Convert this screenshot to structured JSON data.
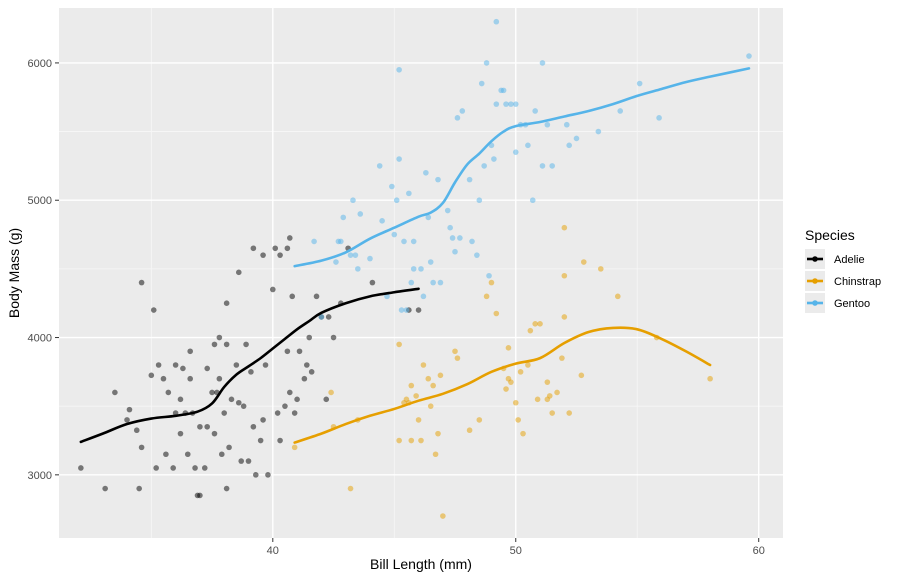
{
  "chart_data": {
    "type": "scatter",
    "xlabel": "Bill Length (mm)",
    "ylabel": "Body Mass (g)",
    "xlim": [
      31.2,
      61.0
    ],
    "ylim": [
      2540,
      6400
    ],
    "xticks": [
      40,
      50,
      60
    ],
    "yticks": [
      3000,
      4000,
      5000,
      6000
    ],
    "grid": true,
    "legend": {
      "title": "Species",
      "position": "right"
    },
    "series": [
      {
        "name": "Adelie",
        "color": "#000000",
        "points": [
          [
            32.1,
            3050
          ],
          [
            33.1,
            2900
          ],
          [
            33.5,
            3600
          ],
          [
            34.0,
            3400
          ],
          [
            34.1,
            3475
          ],
          [
            34.4,
            3325
          ],
          [
            34.5,
            2900
          ],
          [
            34.6,
            3200
          ],
          [
            34.6,
            4400
          ],
          [
            35.0,
            3725
          ],
          [
            35.1,
            4200
          ],
          [
            35.2,
            3050
          ],
          [
            35.3,
            3800
          ],
          [
            35.5,
            3700
          ],
          [
            35.6,
            3150
          ],
          [
            35.7,
            3600
          ],
          [
            35.9,
            3050
          ],
          [
            36.0,
            3450
          ],
          [
            36.0,
            3800
          ],
          [
            36.2,
            3300
          ],
          [
            36.2,
            3550
          ],
          [
            36.3,
            3775
          ],
          [
            36.4,
            3450
          ],
          [
            36.5,
            3150
          ],
          [
            36.6,
            3700
          ],
          [
            36.7,
            3450
          ],
          [
            36.8,
            3050
          ],
          [
            36.9,
            2850
          ],
          [
            37.0,
            2850
          ],
          [
            37.0,
            3350
          ],
          [
            37.2,
            3050
          ],
          [
            37.3,
            3350
          ],
          [
            37.3,
            3775
          ],
          [
            37.5,
            3600
          ],
          [
            37.6,
            3300
          ],
          [
            37.7,
            3600
          ],
          [
            37.8,
            3700
          ],
          [
            37.8,
            4000
          ],
          [
            37.9,
            3150
          ],
          [
            38.0,
            3450
          ],
          [
            38.1,
            2900
          ],
          [
            38.2,
            3200
          ],
          [
            38.3,
            3550
          ],
          [
            38.5,
            3800
          ],
          [
            38.6,
            3525
          ],
          [
            38.6,
            4475
          ],
          [
            38.7,
            3100
          ],
          [
            38.8,
            3500
          ],
          [
            38.9,
            3950
          ],
          [
            39.0,
            3100
          ],
          [
            39.1,
            3750
          ],
          [
            39.2,
            3350
          ],
          [
            39.3,
            3000
          ],
          [
            39.5,
            3250
          ],
          [
            39.6,
            3400
          ],
          [
            39.7,
            3800
          ],
          [
            39.8,
            3000
          ],
          [
            40.0,
            4350
          ],
          [
            40.2,
            3450
          ],
          [
            40.3,
            3250
          ],
          [
            40.5,
            3500
          ],
          [
            40.6,
            3900
          ],
          [
            40.7,
            3600
          ],
          [
            40.8,
            4300
          ],
          [
            40.9,
            3450
          ],
          [
            41.0,
            3550
          ],
          [
            41.1,
            3900
          ],
          [
            41.3,
            3700
          ],
          [
            41.4,
            3800
          ],
          [
            41.5,
            4000
          ],
          [
            41.6,
            3750
          ],
          [
            41.8,
            4300
          ],
          [
            42.0,
            4150
          ],
          [
            42.2,
            3550
          ],
          [
            42.3,
            4150
          ],
          [
            42.5,
            4000
          ],
          [
            42.8,
            4250
          ],
          [
            43.1,
            4650
          ],
          [
            44.1,
            4400
          ],
          [
            45.6,
            4200
          ],
          [
            46.0,
            4200
          ],
          [
            39.2,
            4650
          ],
          [
            39.6,
            4600
          ],
          [
            40.1,
            4650
          ],
          [
            40.3,
            4600
          ],
          [
            40.6,
            4650
          ],
          [
            40.7,
            4725
          ],
          [
            38.1,
            4250
          ],
          [
            36.6,
            3900
          ],
          [
            37.6,
            3950
          ],
          [
            38.1,
            3950
          ]
        ],
        "smooth": [
          [
            32.1,
            3240
          ],
          [
            33.0,
            3300
          ],
          [
            34.0,
            3370
          ],
          [
            35.0,
            3410
          ],
          [
            36.0,
            3430
          ],
          [
            36.9,
            3460
          ],
          [
            37.5,
            3520
          ],
          [
            38.0,
            3640
          ],
          [
            38.5,
            3730
          ],
          [
            39.0,
            3790
          ],
          [
            39.5,
            3850
          ],
          [
            40.0,
            3920
          ],
          [
            40.5,
            3990
          ],
          [
            41.0,
            4060
          ],
          [
            41.5,
            4120
          ],
          [
            42.0,
            4180
          ],
          [
            43.0,
            4250
          ],
          [
            44.0,
            4300
          ],
          [
            45.0,
            4330
          ],
          [
            46.0,
            4355
          ]
        ]
      },
      {
        "name": "Chinstrap",
        "color": "#E69F00",
        "points": [
          [
            40.9,
            3200
          ],
          [
            42.4,
            3600
          ],
          [
            42.5,
            3350
          ],
          [
            43.2,
            2900
          ],
          [
            43.5,
            3400
          ],
          [
            45.2,
            3250
          ],
          [
            45.2,
            3950
          ],
          [
            45.4,
            3525
          ],
          [
            45.5,
            3550
          ],
          [
            45.6,
            3525
          ],
          [
            45.7,
            3650
          ],
          [
            45.9,
            3575
          ],
          [
            46.0,
            3400
          ],
          [
            46.1,
            3250
          ],
          [
            46.2,
            3800
          ],
          [
            46.4,
            3700
          ],
          [
            46.5,
            3500
          ],
          [
            46.6,
            3650
          ],
          [
            46.8,
            3300
          ],
          [
            46.9,
            3725
          ],
          [
            47.0,
            2700
          ],
          [
            47.5,
            3900
          ],
          [
            47.6,
            3850
          ],
          [
            48.1,
            3325
          ],
          [
            48.5,
            3400
          ],
          [
            48.8,
            4300
          ],
          [
            49.0,
            4400
          ],
          [
            49.2,
            4175
          ],
          [
            49.5,
            3775
          ],
          [
            49.7,
            3700
          ],
          [
            49.8,
            3675
          ],
          [
            50.0,
            3525
          ],
          [
            50.1,
            3400
          ],
          [
            50.2,
            3750
          ],
          [
            50.3,
            3300
          ],
          [
            50.5,
            3800
          ],
          [
            50.6,
            4050
          ],
          [
            50.8,
            4100
          ],
          [
            51.0,
            4100
          ],
          [
            51.3,
            3675
          ],
          [
            51.4,
            3575
          ],
          [
            51.5,
            3450
          ],
          [
            51.7,
            3600
          ],
          [
            52.0,
            4450
          ],
          [
            52.0,
            4800
          ],
          [
            52.2,
            3450
          ],
          [
            52.7,
            3725
          ],
          [
            52.8,
            4550
          ],
          [
            53.5,
            4500
          ],
          [
            54.2,
            4300
          ],
          [
            55.8,
            4000
          ],
          [
            58.0,
            3700
          ],
          [
            50.9,
            3550
          ],
          [
            51.3,
            3550
          ],
          [
            49.6,
            3625
          ],
          [
            45.7,
            3250
          ],
          [
            46.7,
            3150
          ],
          [
            49.7,
            3925
          ],
          [
            52.0,
            4150
          ],
          [
            51.9,
            3850
          ]
        ],
        "smooth": [
          [
            40.9,
            3235
          ],
          [
            42.0,
            3300
          ],
          [
            43.0,
            3370
          ],
          [
            44.0,
            3430
          ],
          [
            45.0,
            3480
          ],
          [
            46.0,
            3540
          ],
          [
            47.0,
            3590
          ],
          [
            48.0,
            3660
          ],
          [
            49.0,
            3750
          ],
          [
            50.0,
            3810
          ],
          [
            51.0,
            3850
          ],
          [
            52.0,
            3960
          ],
          [
            53.0,
            4040
          ],
          [
            54.0,
            4070
          ],
          [
            55.0,
            4060
          ],
          [
            56.0,
            3990
          ],
          [
            57.0,
            3900
          ],
          [
            58.0,
            3800
          ]
        ]
      },
      {
        "name": "Gentoo",
        "color": "#56B4E9",
        "points": [
          [
            41.7,
            4700
          ],
          [
            42.0,
            4150
          ],
          [
            42.6,
            4550
          ],
          [
            42.7,
            4700
          ],
          [
            42.8,
            4700
          ],
          [
            42.9,
            4875
          ],
          [
            43.2,
            4600
          ],
          [
            43.3,
            5000
          ],
          [
            43.4,
            4600
          ],
          [
            43.5,
            4500
          ],
          [
            43.6,
            4900
          ],
          [
            44.0,
            4575
          ],
          [
            44.4,
            5250
          ],
          [
            44.5,
            4850
          ],
          [
            44.9,
            5100
          ],
          [
            45.0,
            4750
          ],
          [
            45.1,
            5000
          ],
          [
            45.2,
            5300
          ],
          [
            45.3,
            4200
          ],
          [
            45.4,
            4700
          ],
          [
            45.5,
            4200
          ],
          [
            45.7,
            4400
          ],
          [
            45.8,
            4700
          ],
          [
            46.1,
            4500
          ],
          [
            46.2,
            4300
          ],
          [
            46.4,
            4875
          ],
          [
            46.5,
            4550
          ],
          [
            46.8,
            5150
          ],
          [
            47.2,
            4925
          ],
          [
            47.3,
            4800
          ],
          [
            47.5,
            4625
          ],
          [
            47.7,
            4725
          ],
          [
            47.8,
            5650
          ],
          [
            48.1,
            5150
          ],
          [
            48.2,
            4700
          ],
          [
            48.4,
            4600
          ],
          [
            48.5,
            5000
          ],
          [
            48.7,
            5250
          ],
          [
            49.0,
            5400
          ],
          [
            49.1,
            5300
          ],
          [
            49.2,
            5700
          ],
          [
            49.4,
            5800
          ],
          [
            49.5,
            5800
          ],
          [
            49.6,
            5700
          ],
          [
            49.8,
            5700
          ],
          [
            50.0,
            5350
          ],
          [
            50.2,
            5550
          ],
          [
            50.4,
            5550
          ],
          [
            50.5,
            5400
          ],
          [
            50.7,
            5000
          ],
          [
            50.8,
            5650
          ],
          [
            51.1,
            5250
          ],
          [
            51.3,
            5550
          ],
          [
            51.5,
            5250
          ],
          [
            52.1,
            5550
          ],
          [
            52.2,
            5400
          ],
          [
            52.5,
            5450
          ],
          [
            53.4,
            5500
          ],
          [
            54.3,
            5650
          ],
          [
            55.1,
            5850
          ],
          [
            55.9,
            5600
          ],
          [
            59.6,
            6050
          ],
          [
            45.2,
            5950
          ],
          [
            48.8,
            6000
          ],
          [
            49.2,
            6300
          ],
          [
            51.1,
            6000
          ],
          [
            46.9,
            4400
          ],
          [
            47.4,
            4725
          ],
          [
            48.6,
            5850
          ],
          [
            50.0,
            5700
          ],
          [
            45.8,
            4500
          ],
          [
            46.3,
            5200
          ],
          [
            47.6,
            5600
          ],
          [
            48.9,
            4450
          ],
          [
            45.6,
            5050
          ],
          [
            44.7,
            4300
          ],
          [
            46.6,
            4400
          ]
        ],
        "smooth": [
          [
            40.9,
            4520
          ],
          [
            42.0,
            4560
          ],
          [
            43.0,
            4620
          ],
          [
            44.0,
            4720
          ],
          [
            45.0,
            4800
          ],
          [
            46.0,
            4880
          ],
          [
            46.5,
            4910
          ],
          [
            47.0,
            4980
          ],
          [
            47.5,
            5130
          ],
          [
            48.0,
            5260
          ],
          [
            48.5,
            5340
          ],
          [
            49.0,
            5430
          ],
          [
            49.5,
            5500
          ],
          [
            50.0,
            5540
          ],
          [
            51.0,
            5570
          ],
          [
            52.0,
            5610
          ],
          [
            53.0,
            5650
          ],
          [
            54.0,
            5700
          ],
          [
            55.0,
            5760
          ],
          [
            56.0,
            5810
          ],
          [
            57.0,
            5860
          ],
          [
            58.0,
            5900
          ],
          [
            59.6,
            5960
          ]
        ]
      }
    ]
  }
}
